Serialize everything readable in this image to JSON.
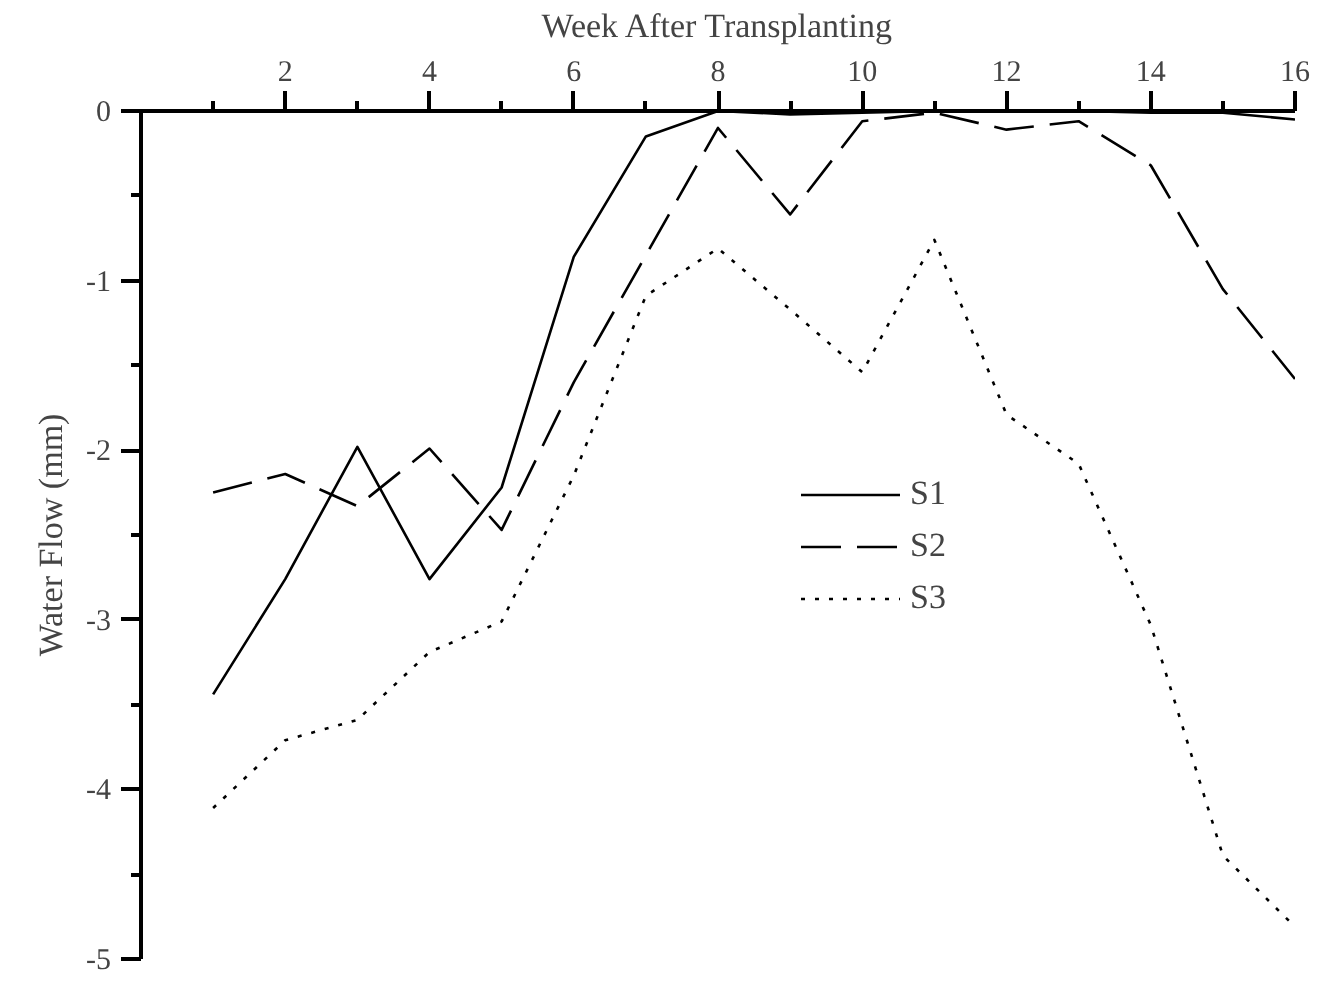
{
  "chart_data": {
    "type": "line",
    "xlabel": "Week After Transplanting",
    "ylabel": "Water Flow (mm)",
    "x": [
      1,
      2,
      3,
      4,
      5,
      6,
      7,
      8,
      9,
      10,
      11,
      12,
      13,
      14,
      15,
      16
    ],
    "series": [
      {
        "name": "S1",
        "color": "#000000",
        "line_style": "solid",
        "values": [
          -3.44,
          -2.76,
          -1.98,
          -2.76,
          -2.22,
          -0.86,
          -0.15,
          0,
          -0.02,
          -0.01,
          0,
          0,
          0,
          -0.01,
          -0.01,
          -0.05
        ]
      },
      {
        "name": "S2",
        "color": "#000000",
        "line_style": "dashed",
        "values": [
          -2.25,
          -2.14,
          -2.33,
          -1.99,
          -2.47,
          -1.6,
          -0.85,
          -0.1,
          -0.61,
          -0.06,
          -0.01,
          -0.11,
          -0.06,
          -0.32,
          -1.05,
          -1.58
        ]
      },
      {
        "name": "S3",
        "color": "#000000",
        "line_style": "dotted",
        "values": [
          -4.11,
          -3.71,
          -3.59,
          -3.19,
          -3.01,
          -2.15,
          -1.09,
          -0.81,
          -1.17,
          -1.54,
          -0.76,
          -1.79,
          -2.08,
          -3.03,
          -4.39,
          -4.81
        ]
      }
    ],
    "xlim": [
      0,
      16
    ],
    "xticks": [
      2,
      4,
      6,
      8,
      10,
      12,
      14,
      16
    ],
    "ylim": [
      -5,
      0
    ],
    "yticks": [
      -5,
      -4,
      -3,
      -2,
      -1,
      0
    ],
    "grid": false,
    "legend": "right",
    "marker": "none"
  }
}
